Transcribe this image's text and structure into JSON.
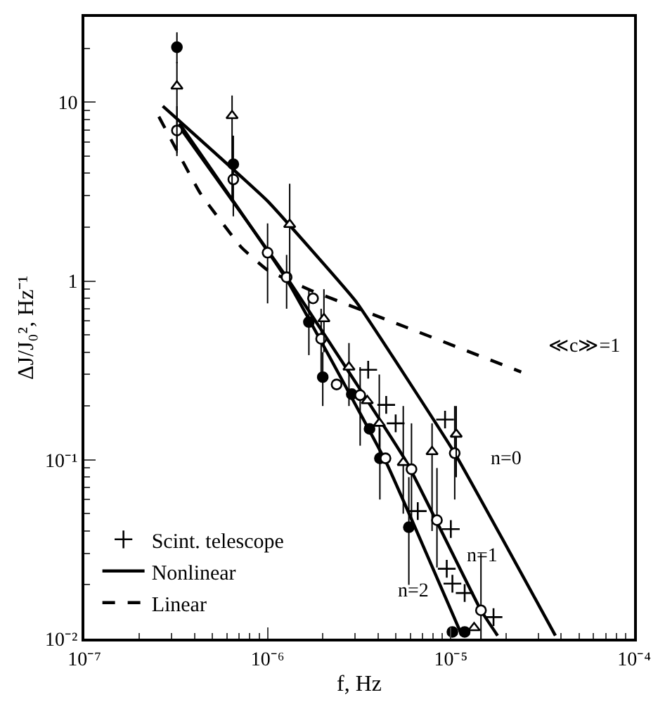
{
  "chart_data": {
    "type": "line",
    "xlabel": "f, Hz",
    "ylabel": "ΔJ/J₀², Hz⁻¹",
    "log": "xy",
    "xlim": [
      1e-07,
      0.0001
    ],
    "ylim": [
      0.01,
      30
    ],
    "xticks": [
      {
        "value": 1e-07,
        "label": "10⁻⁷"
      },
      {
        "value": 1e-06,
        "label": "10⁻⁶"
      },
      {
        "value": 1e-05,
        "label": "10⁻⁵"
      },
      {
        "value": 0.0001,
        "label": "10⁻⁴"
      }
    ],
    "yticks": [
      {
        "value": 0.01,
        "label": "10⁻²"
      },
      {
        "value": 0.1,
        "label": "10⁻¹"
      },
      1,
      10
    ],
    "legend": "bottom left",
    "series": [
      {
        "name": "Nonlinear",
        "color": "#000000",
        "line_style": "solid",
        "x": [
          2.68e-07,
          1e-06,
          3.03e-06,
          1.05e-05,
          3.72e-05
        ],
        "values": [
          9.5,
          2.8,
          0.77,
          0.109,
          0.0104
        ]
      },
      {
        "color": "#000000",
        "line_style": "solid",
        "x": [
          3.3e-07,
          1.27e-06,
          5.74e-06,
          1.46e-05,
          1.8e-05
        ],
        "values": [
          7.3,
          1.05,
          0.097,
          0.0144,
          0.0104
        ]
      },
      {
        "color": "#000000",
        "line_style": "solid",
        "x": [
          3.3e-07,
          1.27e-06,
          4.44e-06,
          1.15e-05
        ],
        "values": [
          7.6,
          1.02,
          0.0966,
          0.0104
        ]
      },
      {
        "name": "Linear",
        "color": "#000000",
        "line_style": "dashed",
        "x": [
          2.55e-07,
          4.29e-07,
          7.2e-07,
          1e-06,
          1.71e-06,
          5.74e-06,
          2.42e-05
        ],
        "values": [
          8.3,
          3.1,
          1.54,
          1.15,
          0.89,
          0.55,
          0.31
        ]
      },
      {
        "type": "scatter",
        "marker": "circle",
        "color": "#000000",
        "x": [
          3.2e-07,
          6.5e-07,
          1.68e-06,
          2e-06,
          2.88e-06,
          3.6e-06,
          4.1e-06,
          5.9e-06,
          1.02e-05,
          1.19e-05
        ],
        "values": [
          20.3,
          4.5,
          0.59,
          0.29,
          0.233,
          0.149,
          0.102,
          0.042,
          0.0109,
          0.0109
        ],
        "errors": [
          [
            16.5,
            24.6
          ],
          null,
          [
            0.385,
            0.885
          ],
          [
            0.2,
            0.4
          ],
          null,
          null,
          [
            0.06,
            0.15
          ],
          [
            0.02,
            0.08
          ],
          null,
          null
        ]
      },
      {
        "type": "scatter",
        "marker": "circle",
        "color": "#ffffff",
        "x": [
          3.2e-07,
          6.5e-07,
          1e-06,
          1.27e-06,
          1.77e-06,
          1.96e-06,
          2.38e-06,
          3.2e-06,
          4.4e-06,
          6.1e-06,
          8.4e-06,
          1.05e-05,
          1.46e-05
        ],
        "values": [
          6.95,
          3.7,
          1.44,
          1.05,
          0.8,
          0.475,
          0.264,
          0.23,
          0.102,
          0.0886,
          0.046,
          0.109,
          0.0144
        ],
        "errors": [
          [
            5.0,
            9.5
          ],
          [
            2.3,
            6.5
          ],
          [
            0.75,
            2.1
          ],
          [
            0.7,
            1.4
          ],
          null,
          [
            0.3,
            0.7
          ],
          null,
          [
            0.12,
            0.33
          ],
          null,
          [
            0.04,
            0.16
          ],
          [
            0.025,
            0.09
          ],
          [
            0.06,
            0.2
          ],
          [
            0.01,
            0.03
          ]
        ]
      },
      {
        "type": "scatter",
        "marker": "triangle",
        "color": "#ffffff",
        "x": [
          3.2e-07,
          6.4e-07,
          1.32e-06,
          2.03e-06,
          2.78e-06,
          3.5e-06,
          4.07e-06,
          5.5e-06,
          7.9e-06,
          1.07e-05,
          1.34e-05
        ],
        "values": [
          12.3,
          8.4,
          2.07,
          0.615,
          0.33,
          0.214,
          0.16,
          0.0966,
          0.111,
          0.139,
          0.0115
        ],
        "errors": [
          [
            5.2,
            16.8
          ],
          [
            2.8,
            10.9
          ],
          [
            1.0,
            3.5
          ],
          [
            0.4,
            0.9
          ],
          [
            0.2,
            0.45
          ],
          null,
          [
            0.1,
            0.3
          ],
          [
            0.05,
            0.2
          ],
          [
            0.04,
            0.16
          ],
          [
            0.08,
            0.2
          ],
          null
        ]
      },
      {
        "name": "Scint. telescope",
        "type": "scatter",
        "marker": "cross",
        "color": "#000000",
        "x": [
          3.54e-06,
          4.44e-06,
          5e-06,
          9.3e-06,
          6.6e-06,
          1e-05,
          9.5e-06,
          1.02e-05,
          1.19e-05,
          1.71e-05
        ],
        "values": [
          0.319,
          0.203,
          0.16,
          0.168,
          0.0517,
          0.041,
          0.0246,
          0.0203,
          0.018,
          0.0132
        ]
      }
    ],
    "annotations": [
      "≪c≫=1",
      "n=0",
      "n=1",
      "n=2"
    ]
  }
}
